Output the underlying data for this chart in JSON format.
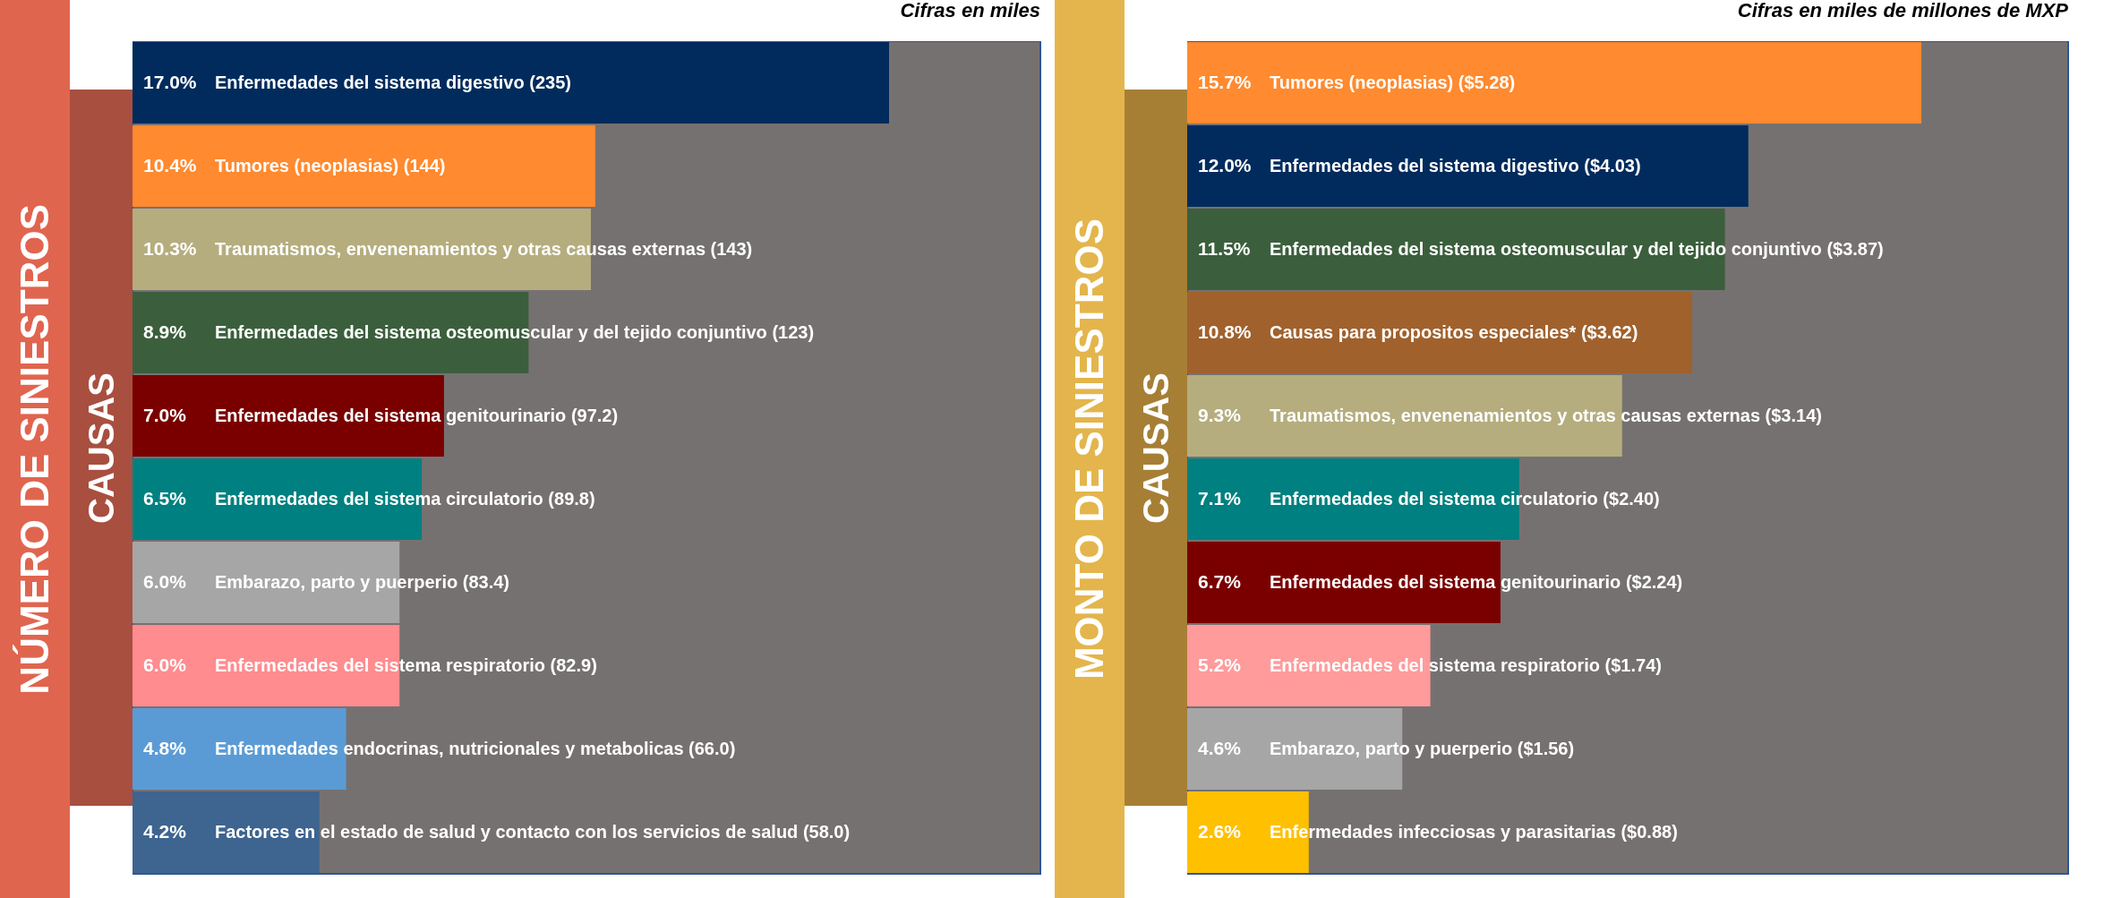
{
  "chart_data": [
    {
      "type": "bar",
      "orientation": "horizontal",
      "title": "NÚMERO DE SINIESTROS",
      "ylabel": "CAUSAS",
      "annotations": [
        "Cifras en miles"
      ],
      "categories": [
        "Enfermedades del sistema digestivo (235)",
        "Tumores (neoplasias) (144)",
        "Traumatismos, envenenamientos y otras causas externas (143)",
        "Enfermedades del sistema osteomuscular y del tejido conjuntivo (123)",
        "Enfermedades del sistema genitourinario (97.2)",
        "Enfermedades del sistema circulatorio (89.8)",
        "Embarazo, parto y puerperio (83.4)",
        "Enfermedades del sistema respiratorio (82.9)",
        "Enfermedades endocrinas, nutricionales y metabolicas (66.0)",
        "Factores en el estado de salud y contacto con los servicios de salud (58.0)"
      ],
      "values": [
        17.0,
        10.4,
        10.3,
        8.9,
        7.0,
        6.5,
        6.0,
        6.0,
        4.8,
        4.2
      ],
      "colors": [
        "#002b5c",
        "#ff8a2f",
        "#b5ad7e",
        "#3b5f3c",
        "#7a0000",
        "#008080",
        "#a6a6a6",
        "#ff8c8f",
        "#5b9bd5",
        "#3e6490"
      ],
      "value_labels": [
        "17.0%",
        "10.4%",
        "10.3%",
        "8.9%",
        "7.0%",
        "6.5%",
        "6.0%",
        "6.0%",
        "4.8%",
        "4.2%"
      ]
    },
    {
      "type": "bar",
      "orientation": "horizontal",
      "title": "MONTO DE SINIESTROS",
      "ylabel": "CAUSAS",
      "annotations": [
        "Cifras en miles de millones de MXP"
      ],
      "categories": [
        "Tumores (neoplasias) ($5.28)",
        "Enfermedades del sistema digestivo ($4.03)",
        "Enfermedades del sistema osteomuscular y del tejido conjuntivo ($3.87)",
        "Causas para propositos especiales* ($3.62)",
        "Traumatismos, envenenamientos y otras causas externas ($3.14)",
        "Enfermedades del sistema circulatorio ($2.40)",
        "Enfermedades del sistema genitourinario ($2.24)",
        "Enfermedades del sistema respiratorio ($1.74)",
        "Embarazo, parto y puerperio ($1.56)",
        "Enfermedades infecciosas y parasitarias ($0.88)"
      ],
      "values": [
        15.7,
        12.0,
        11.5,
        10.8,
        9.3,
        7.1,
        6.7,
        5.2,
        4.6,
        2.6
      ],
      "colors": [
        "#ff8a2f",
        "#002b5c",
        "#3b5f3c",
        "#a0612d",
        "#b5ad7e",
        "#008080",
        "#7a0000",
        "#ff9b9b",
        "#a6a6a6",
        "#ffc000"
      ],
      "value_labels": [
        "15.7%",
        "12.0%",
        "11.5%",
        "10.8%",
        "9.3%",
        "7.1%",
        "6.7%",
        "5.2%",
        "4.6%",
        "2.6%"
      ]
    }
  ]
}
